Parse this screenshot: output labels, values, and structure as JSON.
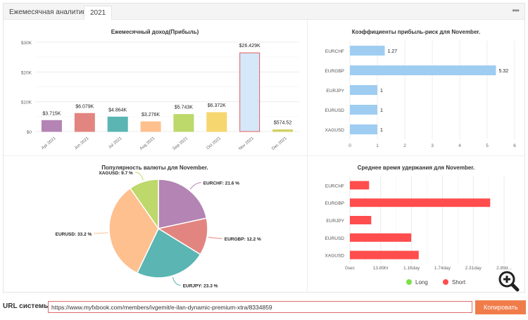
{
  "tabs": [
    {
      "label": "Ежемесячная аналитика",
      "active": false
    },
    {
      "label": "2021",
      "active": true
    }
  ],
  "menu_icon": "more-dots-icon",
  "monthly": {
    "chart_data": {
      "type": "bar",
      "title": "Ежемесячный доход(Прибыль)",
      "categories": [
        "Apr 2021",
        "Jun 2021",
        "Jul 2021",
        "Aug 2021",
        "Sep 2021",
        "Oct 2021",
        "Nov 2021",
        "Dec 2021"
      ],
      "values": [
        3715,
        6079,
        4864,
        3276,
        5743,
        6372,
        26429,
        574.52
      ],
      "labels": [
        "$3.715K",
        "$6.079K",
        "$4.864K",
        "$3.276K",
        "$5.743K",
        "$6.372K",
        "$26.429K",
        "$574.52"
      ],
      "colors": [
        "#b384b4",
        "#e28580",
        "#5ab5b3",
        "#fec08f",
        "#bdd86b",
        "#f6d66f",
        "#d4e8fa",
        "#d0d262"
      ],
      "yticks": [
        "$0",
        "$10K",
        "$20K",
        "$30K"
      ],
      "ylim": [
        0,
        30000
      ],
      "grid": true
    }
  },
  "ratio": {
    "chart_data": {
      "type": "bar",
      "orientation": "horizontal",
      "title": "Коэффициенты прибыль-риск для November.",
      "categories": [
        "EURCHF",
        "EURGBP",
        "EURJPY",
        "EURUSD",
        "XAGUSD"
      ],
      "values": [
        1.27,
        5.32,
        1,
        1,
        1
      ],
      "labels": [
        "1.27",
        "5.32",
        "1",
        "1",
        "1"
      ],
      "color": "#9fcdf2",
      "xticks": [
        "0",
        "1",
        "2",
        "3",
        "4",
        "5",
        "6"
      ],
      "xlim": [
        0,
        6
      ],
      "grid": true
    }
  },
  "popularity": {
    "chart_data": {
      "type": "pie",
      "title": "Популярность валюты для November.",
      "slices": [
        {
          "label": "EURCHF: 21.6 %",
          "name": "EURCHF",
          "value": 21.6,
          "color": "#b384b4"
        },
        {
          "label": "EURGBP: 12.2 %",
          "name": "EURGBP",
          "value": 12.2,
          "color": "#e28580"
        },
        {
          "label": "EURJPY: 23.3 %",
          "name": "EURJPY",
          "value": 23.3,
          "color": "#5ab5b3"
        },
        {
          "label": "EURUSD: 33.2 %",
          "name": "EURUSD",
          "value": 33.2,
          "color": "#fec08f"
        },
        {
          "label": "XAGUSD: 9.7 %",
          "name": "XAGUSD",
          "value": 9.7,
          "color": "#bdd86b"
        }
      ]
    }
  },
  "holding": {
    "chart_data": {
      "type": "bar",
      "orientation": "horizontal",
      "title": "Среднее время удержания для November.",
      "categories": [
        "EURCHF",
        "EURGBP",
        "EURJPY",
        "EURUSD",
        "XAGUSD"
      ],
      "series": [
        {
          "name": "Long",
          "color": "#7be04a",
          "values": [
            0,
            0,
            0,
            0,
            0
          ]
        },
        {
          "name": "Short",
          "color": "#ff4d4d",
          "values": [
            0.36,
            2.63,
            0.4,
            1.15,
            1.29
          ]
        }
      ],
      "value_unit": "day",
      "xticks": [
        "0sec",
        "13.89hr",
        "1.16day",
        "1.74day",
        "2.31day",
        "2.89d..."
      ],
      "xlim": [
        0,
        2.89
      ],
      "legend": "bottom",
      "grid": true
    }
  },
  "url": {
    "label": "URL системы:",
    "value": "https://www.myfxbook.com/members/ivgemit/e-ilan-dynamic-premium-xtra/8334859",
    "copy_label": "Копировать"
  }
}
